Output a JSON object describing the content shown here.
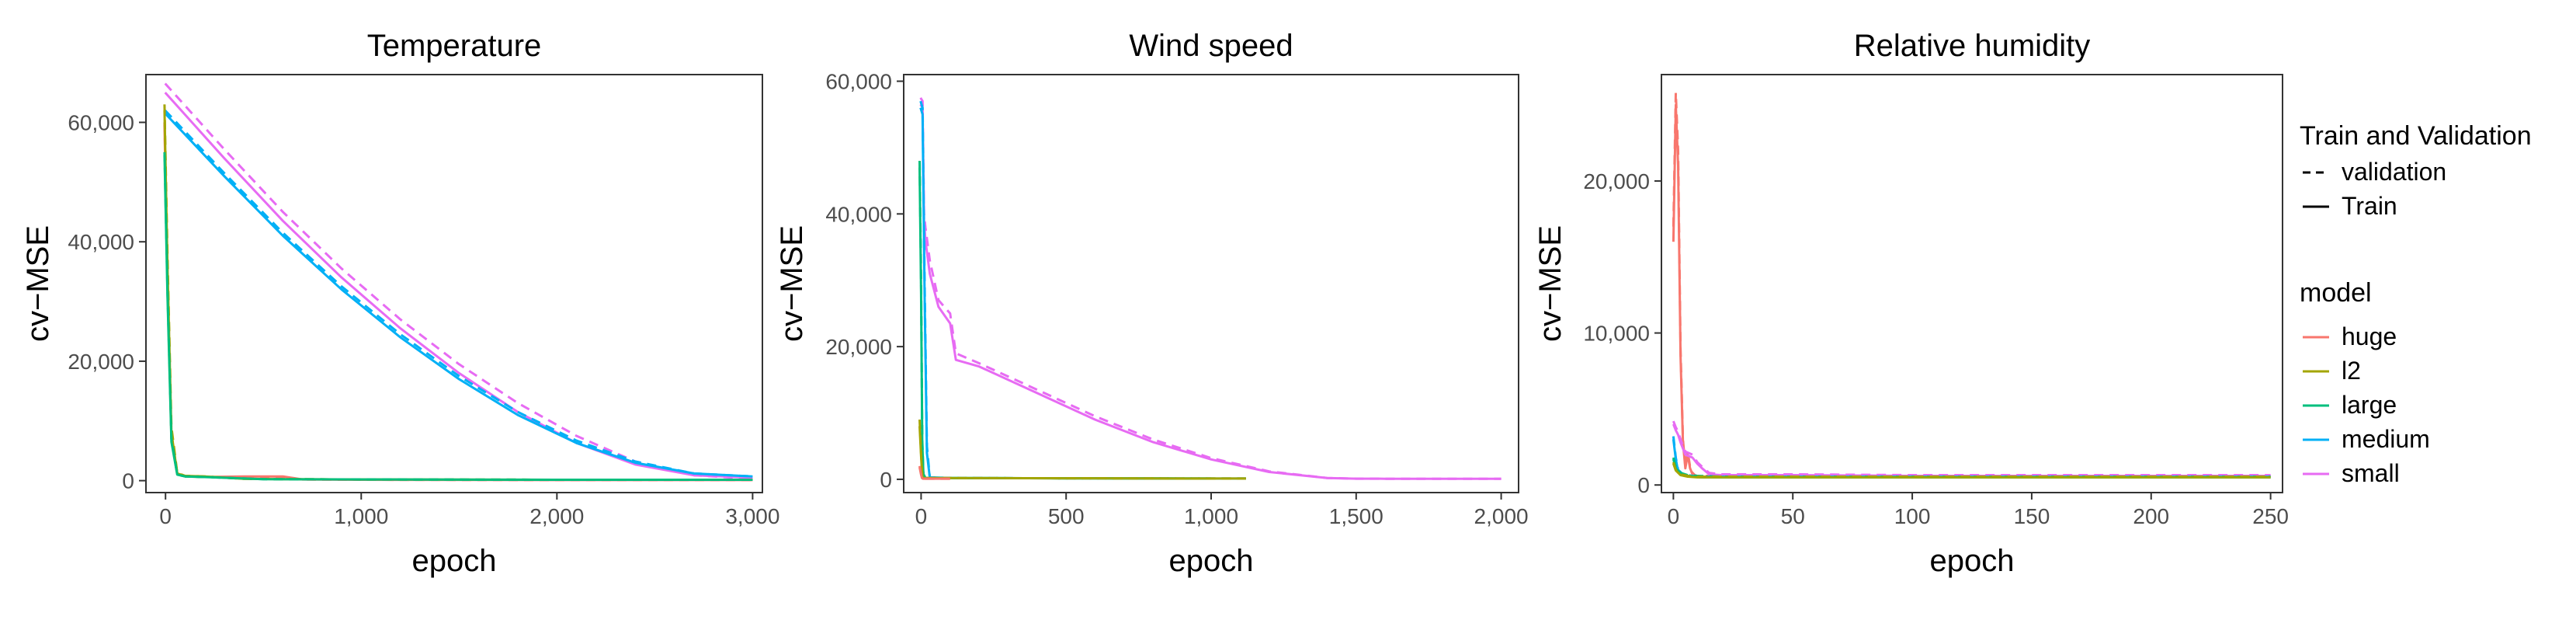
{
  "chart_data": [
    {
      "type": "line",
      "title": "Temperature",
      "xlabel": "epoch",
      "ylabel": "cv−MSE",
      "xlim": [
        -100,
        3050
      ],
      "ylim": [
        -2000,
        68000
      ],
      "xticks": [
        0,
        1000,
        2000,
        3000
      ],
      "xtick_labels": [
        "0",
        "1,000",
        "2,000",
        "3,000"
      ],
      "yticks": [
        0,
        20000,
        40000,
        60000
      ],
      "ytick_labels": [
        "0",
        "20,000",
        "40,000",
        "60,000"
      ],
      "grid": false,
      "series": [
        {
          "model": "small",
          "kind": "validation",
          "x": [
            -2,
            300,
            600,
            900,
            1200,
            1500,
            1800,
            2100,
            2400,
            2700,
            3000
          ],
          "y": [
            66500,
            55500,
            45000,
            35500,
            27000,
            19500,
            13000,
            7500,
            3200,
            900,
            300
          ]
        },
        {
          "model": "small",
          "kind": "Train",
          "x": [
            -2,
            300,
            600,
            900,
            1200,
            1500,
            1800,
            2100,
            2400,
            2700,
            3000
          ],
          "y": [
            65000,
            54000,
            43500,
            34000,
            25500,
            18000,
            11500,
            6300,
            2700,
            900,
            500
          ]
        },
        {
          "model": "medium",
          "kind": "validation",
          "x": [
            -2,
            300,
            600,
            900,
            1200,
            1500,
            1800,
            2100,
            2400,
            2700,
            3000
          ],
          "y": [
            62000,
            51500,
            41500,
            32500,
            24500,
            17500,
            11500,
            6700,
            3200,
            1200,
            700
          ]
        },
        {
          "model": "medium",
          "kind": "Train",
          "x": [
            -2,
            300,
            600,
            900,
            1200,
            1500,
            1800,
            2100,
            2400,
            2700,
            3000
          ],
          "y": [
            61500,
            51000,
            41000,
            32000,
            24000,
            17000,
            11000,
            6300,
            3000,
            1200,
            700
          ]
        },
        {
          "model": "huge",
          "kind": "validation",
          "x": [
            -5,
            10,
            30,
            60,
            100,
            200,
            400,
            600,
            700,
            1000,
            2000,
            3000
          ],
          "y": [
            60000,
            35000,
            8000,
            1200,
            700,
            600,
            500,
            500,
            200,
            150,
            100,
            100
          ]
        },
        {
          "model": "huge",
          "kind": "Train",
          "x": [
            -5,
            10,
            30,
            60,
            100,
            200,
            400,
            600,
            700,
            1000,
            2000,
            3000
          ],
          "y": [
            59500,
            33000,
            7000,
            1100,
            700,
            600,
            700,
            700,
            200,
            150,
            100,
            100
          ]
        },
        {
          "model": "l2",
          "kind": "validation",
          "x": [
            -5,
            10,
            30,
            60,
            100,
            200,
            400,
            600,
            1000,
            2000,
            3000
          ],
          "y": [
            63000,
            38000,
            9000,
            1300,
            800,
            700,
            300,
            250,
            200,
            150,
            150
          ]
        },
        {
          "model": "l2",
          "kind": "Train",
          "x": [
            -5,
            10,
            30,
            60,
            100,
            200,
            400,
            600,
            1000,
            2000,
            3000
          ],
          "y": [
            62000,
            36000,
            8000,
            1200,
            800,
            700,
            300,
            250,
            200,
            150,
            150
          ]
        },
        {
          "model": "large",
          "kind": "validation",
          "x": [
            -5,
            10,
            30,
            60,
            100,
            200,
            500,
            1000,
            2000,
            3000
          ],
          "y": [
            55000,
            32000,
            7000,
            1000,
            700,
            600,
            250,
            200,
            150,
            150
          ]
        },
        {
          "model": "large",
          "kind": "Train",
          "x": [
            -5,
            10,
            30,
            60,
            100,
            200,
            500,
            1000,
            2000,
            3000
          ],
          "y": [
            54500,
            31000,
            6500,
            1000,
            700,
            600,
            250,
            200,
            150,
            150
          ]
        }
      ]
    },
    {
      "type": "line",
      "title": "Wind speed",
      "xlabel": "epoch",
      "ylabel": "cv−MSE",
      "xlim": [
        -60,
        2060
      ],
      "ylim": [
        -2000,
        61000
      ],
      "xticks": [
        0,
        500,
        1000,
        1500,
        2000
      ],
      "xtick_labels": [
        "0",
        "500",
        "1,000",
        "1,500",
        "2,000"
      ],
      "yticks": [
        0,
        20000,
        40000,
        60000
      ],
      "ytick_labels": [
        "0",
        "20,000",
        "40,000",
        "60,000"
      ],
      "grid": false,
      "series": [
        {
          "model": "small",
          "kind": "validation",
          "x": [
            -2,
            5,
            10,
            15,
            30,
            60,
            100,
            120,
            200,
            400,
            600,
            800,
            1000,
            1200,
            1400,
            1500,
            1600,
            2000
          ],
          "y": [
            57500,
            57000,
            40000,
            38000,
            33000,
            27000,
            25000,
            19000,
            17500,
            13500,
            9500,
            6000,
            3200,
            1200,
            200,
            100,
            80,
            80
          ]
        },
        {
          "model": "small",
          "kind": "Train",
          "x": [
            -2,
            5,
            10,
            15,
            30,
            60,
            100,
            120,
            200,
            400,
            600,
            800,
            1000,
            1200,
            1400,
            1500,
            1600,
            2000
          ],
          "y": [
            56500,
            56000,
            39000,
            36000,
            31000,
            26000,
            23500,
            18000,
            17000,
            13000,
            9000,
            5600,
            3000,
            1100,
            200,
            100,
            80,
            80
          ]
        },
        {
          "model": "medium",
          "kind": "validation",
          "x": [
            -2,
            5,
            12,
            20,
            30,
            100,
            500,
            1000,
            1120
          ],
          "y": [
            57000,
            56000,
            30000,
            5000,
            300,
            200,
            150,
            120,
            120
          ]
        },
        {
          "model": "medium",
          "kind": "Train",
          "x": [
            -2,
            5,
            12,
            20,
            30,
            100,
            500,
            1000,
            1120
          ],
          "y": [
            56000,
            55000,
            28000,
            4000,
            300,
            200,
            150,
            120,
            120
          ]
        },
        {
          "model": "large",
          "kind": "validation",
          "x": [
            -5,
            0,
            4,
            8,
            15,
            500,
            1000
          ],
          "y": [
            48000,
            30000,
            6000,
            800,
            200,
            150,
            120
          ]
        },
        {
          "model": "large",
          "kind": "Train",
          "x": [
            -5,
            0,
            4,
            8,
            15,
            500,
            1000
          ],
          "y": [
            47000,
            28000,
            5500,
            700,
            200,
            150,
            120
          ]
        },
        {
          "model": "l2",
          "kind": "validation",
          "x": [
            -5,
            0,
            4,
            8,
            500,
            1000,
            1120
          ],
          "y": [
            9000,
            4000,
            600,
            200,
            150,
            120,
            120
          ]
        },
        {
          "model": "l2",
          "kind": "Train",
          "x": [
            -5,
            0,
            4,
            8,
            500,
            1000,
            1120
          ],
          "y": [
            8000,
            3500,
            500,
            200,
            150,
            120,
            120
          ]
        },
        {
          "model": "huge",
          "kind": "validation",
          "x": [
            -5,
            0,
            3,
            6,
            100
          ],
          "y": [
            2000,
            800,
            200,
            100,
            100
          ]
        },
        {
          "model": "huge",
          "kind": "Train",
          "x": [
            -5,
            0,
            3,
            6,
            100
          ],
          "y": [
            1800,
            700,
            200,
            100,
            100
          ]
        }
      ]
    },
    {
      "type": "line",
      "title": "Relative humidity",
      "xlabel": "epoch",
      "ylabel": "cv−MSE",
      "xlim": [
        -5,
        255
      ],
      "ylim": [
        -500,
        27000
      ],
      "xticks": [
        0,
        50,
        100,
        150,
        200,
        250
      ],
      "xtick_labels": [
        "0",
        "50",
        "100",
        "150",
        "200",
        "250"
      ],
      "yticks": [
        0,
        10000,
        20000
      ],
      "ytick_labels": [
        "0",
        "10,000",
        "20,000"
      ],
      "grid": false,
      "series": [
        {
          "model": "huge",
          "kind": "validation",
          "x": [
            0,
            1,
            2,
            3,
            4,
            5,
            6,
            7,
            8,
            9,
            10,
            15,
            50,
            100,
            150,
            200,
            250
          ],
          "y": [
            17000,
            25800,
            22000,
            9000,
            3000,
            1200,
            2200,
            1200,
            800,
            650,
            600,
            600,
            600,
            600,
            600,
            600,
            600
          ]
        },
        {
          "model": "huge",
          "kind": "Train",
          "x": [
            0,
            1,
            2,
            3,
            4,
            5,
            6,
            7,
            8,
            9,
            10,
            15,
            50,
            100,
            150,
            200,
            250
          ],
          "y": [
            16000,
            25000,
            21000,
            8500,
            2800,
            1100,
            2000,
            1100,
            700,
            600,
            550,
            550,
            550,
            550,
            550,
            550,
            550
          ]
        },
        {
          "model": "small",
          "kind": "validation",
          "x": [
            0,
            1,
            2,
            3,
            5,
            8,
            10,
            12,
            15,
            20,
            50,
            100,
            150,
            200,
            250
          ],
          "y": [
            4200,
            3800,
            3500,
            3000,
            2200,
            2000,
            1500,
            1200,
            800,
            700,
            700,
            650,
            650,
            650,
            650
          ]
        },
        {
          "model": "small",
          "kind": "Train",
          "x": [
            0,
            1,
            2,
            3,
            5,
            8,
            10,
            12,
            15,
            20,
            50,
            100,
            150,
            200,
            250
          ],
          "y": [
            4000,
            3600,
            3300,
            2800,
            2000,
            1800,
            1400,
            1100,
            700,
            650,
            650,
            600,
            600,
            600,
            600
          ]
        },
        {
          "model": "medium",
          "kind": "validation",
          "x": [
            0,
            1,
            2,
            4,
            8,
            12,
            20,
            50,
            100,
            250
          ],
          "y": [
            3200,
            1800,
            1000,
            700,
            600,
            550,
            550,
            550,
            550,
            550
          ]
        },
        {
          "model": "medium",
          "kind": "Train",
          "x": [
            0,
            1,
            2,
            4,
            8,
            12,
            20,
            50,
            100,
            250
          ],
          "y": [
            3000,
            1700,
            900,
            650,
            550,
            500,
            500,
            500,
            500,
            500
          ]
        },
        {
          "model": "large",
          "kind": "validation",
          "x": [
            0,
            1,
            3,
            6,
            10,
            20,
            50,
            100,
            250
          ],
          "y": [
            1800,
            1200,
            800,
            650,
            600,
            550,
            550,
            550,
            550
          ]
        },
        {
          "model": "large",
          "kind": "Train",
          "x": [
            0,
            1,
            3,
            6,
            10,
            20,
            50,
            100,
            250
          ],
          "y": [
            1700,
            1100,
            750,
            600,
            550,
            500,
            500,
            500,
            500
          ]
        },
        {
          "model": "l2",
          "kind": "validation",
          "x": [
            0,
            1,
            3,
            6,
            10,
            20,
            50,
            100,
            250
          ],
          "y": [
            1500,
            1000,
            700,
            600,
            550,
            550,
            550,
            550,
            550
          ]
        },
        {
          "model": "l2",
          "kind": "Train",
          "x": [
            0,
            1,
            3,
            6,
            10,
            20,
            50,
            100,
            250
          ],
          "y": [
            1400,
            950,
            650,
            550,
            500,
            500,
            500,
            500,
            500
          ]
        }
      ]
    }
  ],
  "legend": {
    "placement": "right",
    "linetype_title": "Train and Validation",
    "linetype_items": [
      {
        "key": "validation",
        "label": "validation",
        "dash": true
      },
      {
        "key": "Train",
        "label": "Train",
        "dash": false
      }
    ],
    "model_title": "model",
    "model_items": [
      {
        "key": "huge",
        "label": "huge",
        "color": "#F8766D"
      },
      {
        "key": "l2",
        "label": "l2",
        "color": "#A3A500"
      },
      {
        "key": "large",
        "label": "large",
        "color": "#00BF7D"
      },
      {
        "key": "medium",
        "label": "medium",
        "color": "#00B0F6"
      },
      {
        "key": "small",
        "label": "small",
        "color": "#E76BF3"
      }
    ]
  }
}
